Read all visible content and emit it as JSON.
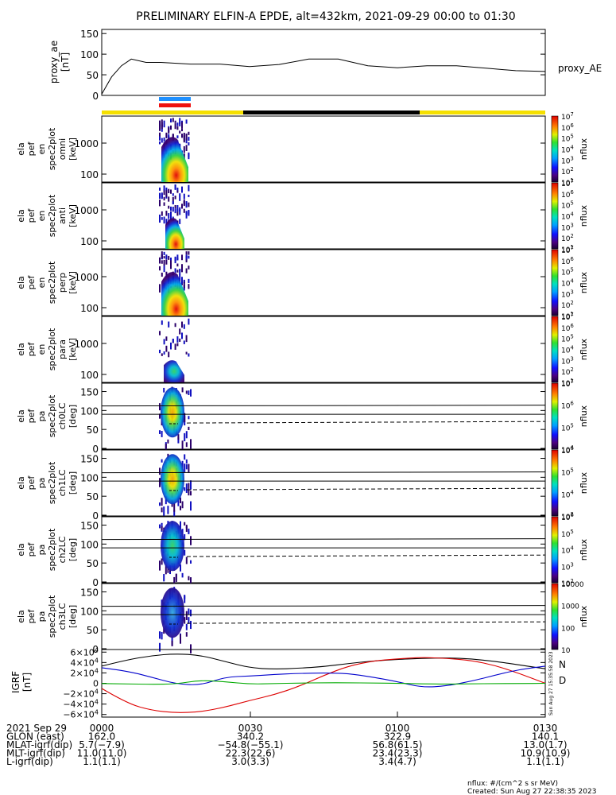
{
  "title": "PRELIMINARY ELFIN-A EPDE, alt=432km, 2021-09-29 00:00 to 01:30",
  "colors": {
    "sunlit": "#f5e000",
    "shadow": "#000000",
    "science_blue": "#1e90ff",
    "science_red": "#ee1111",
    "bx": "#0000cc",
    "by": "#00aa00",
    "bz": "#dd0000",
    "btot": "#000000"
  },
  "chart_data": [
    {
      "type": "line",
      "id": "proxy_ae",
      "ylabel": [
        "proxy_ae",
        "[nT]"
      ],
      "legend": "proxy_AE",
      "yticks": [
        "150",
        "100",
        "50",
        "0"
      ],
      "ylim": [
        0,
        160
      ],
      "xlim_min": [
        0,
        90
      ],
      "x": [
        0,
        2,
        4,
        6,
        9,
        12,
        18,
        24,
        30,
        36,
        42,
        48,
        54,
        60,
        66,
        72,
        78,
        84,
        90
      ],
      "y": [
        3,
        45,
        72,
        88,
        80,
        80,
        76,
        76,
        70,
        75,
        88,
        88,
        72,
        67,
        72,
        72,
        66,
        60,
        58
      ]
    },
    {
      "type": "heatmap",
      "ylabel": [
        "ela",
        "pef",
        "en",
        "spec2plot",
        "omni",
        "[keV]"
      ],
      "yticks": [
        "1000",
        "100"
      ],
      "colorbar": {
        "label": "nflux",
        "ticks": [
          "10^7",
          "10^6",
          "10^5",
          "10^4",
          "10^3",
          "10^2",
          "10^1"
        ]
      }
    },
    {
      "type": "heatmap",
      "ylabel": [
        "ela",
        "pef",
        "en",
        "spec2plot",
        "anti",
        "[keV]"
      ],
      "yticks": [
        "1000",
        "100"
      ],
      "colorbar": {
        "label": "nflux",
        "ticks": [
          "10^7",
          "10^6",
          "10^5",
          "10^4",
          "10^3",
          "10^2",
          "10^1"
        ]
      }
    },
    {
      "type": "heatmap",
      "ylabel": [
        "ela",
        "pef",
        "en",
        "spec2plot",
        "perp",
        "[keV]"
      ],
      "yticks": [
        "1000",
        "100"
      ],
      "colorbar": {
        "label": "nflux",
        "ticks": [
          "10^7",
          "10^6",
          "10^5",
          "10^4",
          "10^3",
          "10^2",
          "10^1"
        ]
      }
    },
    {
      "type": "heatmap",
      "ylabel": [
        "ela",
        "pef",
        "en",
        "spec2plot",
        "para",
        "[keV]"
      ],
      "yticks": [
        "1000",
        "100"
      ],
      "colorbar": {
        "label": "nflux",
        "ticks": [
          "10^7",
          "10^6",
          "10^5",
          "10^4",
          "10^3",
          "10^2",
          "10^1"
        ]
      }
    },
    {
      "type": "heatmap",
      "ylabel": [
        "ela",
        "pef",
        "pa",
        "spec2plot",
        "ch0LC",
        "[deg]"
      ],
      "yticks": [
        "150",
        "100",
        "50",
        "0"
      ],
      "colorbar": {
        "label": "nflux",
        "ticks": [
          "10^7",
          "10^6",
          "10^5",
          "10^4"
        ]
      }
    },
    {
      "type": "heatmap",
      "ylabel": [
        "ela",
        "pef",
        "pa",
        "spec2plot",
        "ch1LC",
        "[deg]"
      ],
      "yticks": [
        "150",
        "100",
        "50",
        "0"
      ],
      "colorbar": {
        "label": "nflux",
        "ticks": [
          "10^6",
          "10^5",
          "10^4",
          "10^3"
        ]
      }
    },
    {
      "type": "heatmap",
      "ylabel": [
        "ela",
        "pef",
        "pa",
        "spec2plot",
        "ch2LC",
        "[deg]"
      ],
      "yticks": [
        "150",
        "100",
        "50",
        "0"
      ],
      "colorbar": {
        "label": "nflux",
        "ticks": [
          "10^6",
          "10^5",
          "10^4",
          "10^3",
          "10^2"
        ]
      }
    },
    {
      "type": "heatmap",
      "ylabel": [
        "ela",
        "pef",
        "pa",
        "spec2plot",
        "ch3LC",
        "[deg]"
      ],
      "yticks": [
        "150",
        "100",
        "50",
        "0"
      ],
      "colorbar": {
        "label": "nflux",
        "ticks": [
          "10000",
          "1000",
          "100",
          "10"
        ]
      }
    },
    {
      "type": "line",
      "id": "igrf",
      "ylabel": [
        "IGRF",
        "[nT]"
      ],
      "yticks": [
        "6×10^4",
        "4×10^4",
        "2×10^4",
        "0",
        "−2×10^4",
        "−4×10^4",
        "−6×10^4"
      ],
      "ylim": [
        -65000,
        65000
      ],
      "legend": [
        "N",
        "D"
      ],
      "series": [
        {
          "name": "N",
          "x": [
            0,
            5,
            10,
            15,
            20,
            25,
            30,
            35,
            40,
            45,
            50,
            55,
            60,
            65,
            70,
            75,
            80,
            85,
            90
          ],
          "y": [
            33000,
            45000,
            53000,
            57000,
            54000,
            42000,
            30000,
            27000,
            29000,
            32000,
            38000,
            43000,
            46000,
            48000,
            49000,
            47000,
            42000,
            35000,
            28000
          ]
        },
        {
          "name": "D",
          "x": [
            0,
            5,
            10,
            15,
            20,
            25,
            30,
            35,
            40,
            45,
            50,
            55,
            60,
            65,
            70,
            75,
            80,
            85,
            90
          ],
          "y": [
            -10000,
            -38000,
            -52000,
            -57000,
            -55000,
            -46000,
            -33000,
            -22000,
            -6000,
            15000,
            33000,
            43000,
            47000,
            50000,
            48000,
            44000,
            34000,
            18000,
            0
          ]
        },
        {
          "name": "",
          "x": [
            0,
            5,
            10,
            15,
            20,
            25,
            30,
            35,
            40,
            45,
            50,
            55,
            60,
            65,
            70,
            75,
            80,
            85,
            90
          ],
          "y": [
            30000,
            24000,
            12000,
            -1000,
            -4000,
            12000,
            14000,
            17000,
            19000,
            20000,
            19000,
            12000,
            3000,
            -8000,
            -5000,
            4000,
            16000,
            27000,
            33000
          ]
        },
        {
          "name": "",
          "x": [
            0,
            5,
            10,
            15,
            20,
            25,
            30,
            35,
            40,
            45,
            50,
            55,
            60,
            65,
            70,
            75,
            80,
            85,
            90
          ],
          "y": [
            -500,
            -1000,
            -2000,
            -1500,
            6000,
            3000,
            -1500,
            -500,
            500,
            1000,
            1000,
            500,
            0,
            -1000,
            -1500,
            -1000,
            -500,
            -500,
            0
          ]
        }
      ]
    }
  ],
  "vertical_labels": {
    "timestamp": "Sun Aug 27 15:35:58 2023"
  },
  "footer": {
    "rows": [
      {
        "label": "2021 Sep 29",
        "values": [
          "0000",
          "0030",
          "0100",
          "0130"
        ]
      },
      {
        "label": "GLON (east)",
        "values": [
          "162.0",
          "340.2",
          "322.9",
          "140.1"
        ]
      },
      {
        "label": "MLAT-igrf(dip)",
        "values": [
          "5.7(−7.9)",
          "−54.8(−55.1)",
          "56.8(61.5)",
          "13.0(1.7)"
        ]
      },
      {
        "label": "MLT-igrf(dip)",
        "values": [
          "11.0(11.0)",
          "22.3(22.6)",
          "23.4(23.3)",
          "10.9(10.9)"
        ]
      },
      {
        "label": "L-igrf(dip)",
        "values": [
          "1.1(1.1)",
          "3.0(3.3)",
          "3.4(4.7)",
          "1.1(1.1)"
        ]
      }
    ],
    "nflux_note": "nflux: #/(cm^2 s sr MeV)",
    "created": "Created: Sun Aug 27 22:38:35 2023"
  }
}
